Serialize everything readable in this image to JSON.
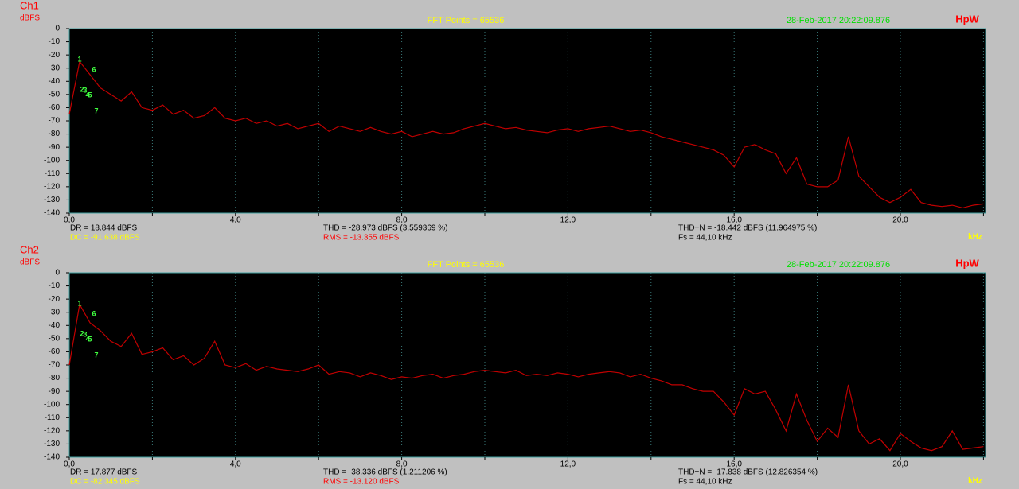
{
  "chart_data": [
    {
      "type": "line",
      "channel": "Ch1",
      "ylabel": "dBFS",
      "title": "FFT Points = 65536",
      "timestamp": "28-Feb-2017 20:22:09.876",
      "brand": "HpW",
      "xlabel": "kHz",
      "stats": [
        "DR = 18.844 dBFS",
        "DC = -91.638 dBFS",
        "THD = -28.973 dBFS (3.559369 %)",
        "RMS = -13.355 dBFS",
        "THD+N = -18.442 dBFS (11.964975 %)",
        "Fs = 44,10 kHz"
      ],
      "harmonic_markers": [
        "1",
        "6",
        "2",
        "3",
        "4",
        "5",
        "7"
      ],
      "color": "#c00000",
      "xlim": [
        0,
        22.05
      ],
      "ylim": [
        -140,
        0
      ],
      "xticks": [
        {
          "value": 0,
          "label": "0,0"
        },
        {
          "value": 2,
          "label": null
        },
        {
          "value": 4,
          "label": "4,0"
        },
        {
          "value": 6,
          "label": null
        },
        {
          "value": 8,
          "label": "8,0"
        },
        {
          "value": 10,
          "label": null
        },
        {
          "value": 12,
          "label": "12,0"
        },
        {
          "value": 14,
          "label": null
        },
        {
          "value": 16,
          "label": "16,0"
        },
        {
          "value": 18,
          "label": null
        },
        {
          "value": 20,
          "label": "20,0"
        },
        {
          "value": 22,
          "label": null
        }
      ],
      "yticks": [
        0,
        -10,
        -20,
        -30,
        -40,
        -50,
        -60,
        -70,
        -80,
        -90,
        -100,
        -110,
        -120,
        -130,
        -140
      ],
      "x": [
        0,
        0.25,
        0.5,
        0.75,
        1,
        1.25,
        1.5,
        1.75,
        2,
        2.25,
        2.5,
        2.75,
        3,
        3.25,
        3.5,
        3.75,
        4,
        4.25,
        4.5,
        4.75,
        5,
        5.25,
        5.5,
        5.75,
        6,
        6.25,
        6.5,
        6.75,
        7,
        7.25,
        7.5,
        7.75,
        8,
        8.25,
        8.5,
        8.75,
        9,
        9.25,
        9.5,
        9.75,
        10,
        10.25,
        10.5,
        10.75,
        11,
        11.25,
        11.5,
        11.75,
        12,
        12.25,
        12.5,
        12.75,
        13,
        13.25,
        13.5,
        13.75,
        14,
        14.25,
        14.5,
        14.75,
        15,
        15.25,
        15.5,
        15.75,
        16,
        16.25,
        16.5,
        16.75,
        17,
        17.25,
        17.5,
        17.75,
        18,
        18.25,
        18.5,
        18.75,
        19,
        19.25,
        19.5,
        19.75,
        20,
        20.25,
        20.5,
        20.75,
        21,
        21.25,
        21.5,
        21.75,
        22
      ],
      "values": [
        -65,
        -25,
        -35,
        -45,
        -50,
        -55,
        -48,
        -60,
        -62,
        -58,
        -65,
        -62,
        -68,
        -66,
        -60,
        -68,
        -70,
        -68,
        -72,
        -70,
        -74,
        -72,
        -76,
        -74,
        -72,
        -78,
        -74,
        -76,
        -78,
        -75,
        -78,
        -80,
        -78,
        -82,
        -80,
        -78,
        -80,
        -79,
        -76,
        -74,
        -72,
        -74,
        -76,
        -75,
        -77,
        -78,
        -79,
        -77,
        -76,
        -78,
        -76,
        -75,
        -74,
        -76,
        -78,
        -77,
        -79,
        -82,
        -84,
        -86,
        -88,
        -90,
        -92,
        -96,
        -105,
        -90,
        -88,
        -92,
        -95,
        -110,
        -98,
        -118,
        -120,
        -120,
        -115,
        -82,
        -112,
        -120,
        -128,
        -132,
        -128,
        -122,
        -132,
        -134,
        -135,
        -134,
        -136,
        -134,
        -133
      ]
    },
    {
      "type": "line",
      "channel": "Ch2",
      "ylabel": "dBFS",
      "title": "FFT Points = 65536",
      "timestamp": "28-Feb-2017 20:22:09.876",
      "brand": "HpW",
      "xlabel": "kHz",
      "stats": [
        "DR = 17.877 dBFS",
        "DC = -82.345 dBFS",
        "THD = -38.336 dBFS (1.211206 %)",
        "RMS = -13.120 dBFS",
        "THD+N = -17.838 dBFS (12.826354 %)",
        "Fs = 44,10 kHz"
      ],
      "harmonic_markers": [
        "1",
        "6",
        "2",
        "3",
        "4",
        "5",
        "7"
      ],
      "color": "#c00000",
      "xlim": [
        0,
        22.05
      ],
      "ylim": [
        -140,
        0
      ],
      "xticks": [
        {
          "value": 0,
          "label": "0,0"
        },
        {
          "value": 2,
          "label": null
        },
        {
          "value": 4,
          "label": "4,0"
        },
        {
          "value": 6,
          "label": null
        },
        {
          "value": 8,
          "label": "8,0"
        },
        {
          "value": 10,
          "label": null
        },
        {
          "value": 12,
          "label": "12,0"
        },
        {
          "value": 14,
          "label": null
        },
        {
          "value": 16,
          "label": "16,0"
        },
        {
          "value": 18,
          "label": null
        },
        {
          "value": 20,
          "label": "20,0"
        },
        {
          "value": 22,
          "label": null
        }
      ],
      "yticks": [
        0,
        -10,
        -20,
        -30,
        -40,
        -50,
        -60,
        -70,
        -80,
        -90,
        -100,
        -110,
        -120,
        -130,
        -140
      ],
      "x": [
        0,
        0.25,
        0.5,
        0.75,
        1,
        1.25,
        1.5,
        1.75,
        2,
        2.25,
        2.5,
        2.75,
        3,
        3.25,
        3.5,
        3.75,
        4,
        4.25,
        4.5,
        4.75,
        5,
        5.25,
        5.5,
        5.75,
        6,
        6.25,
        6.5,
        6.75,
        7,
        7.25,
        7.5,
        7.75,
        8,
        8.25,
        8.5,
        8.75,
        9,
        9.25,
        9.5,
        9.75,
        10,
        10.25,
        10.5,
        10.75,
        11,
        11.25,
        11.5,
        11.75,
        12,
        12.25,
        12.5,
        12.75,
        13,
        13.25,
        13.5,
        13.75,
        14,
        14.25,
        14.5,
        14.75,
        15,
        15.25,
        15.5,
        15.75,
        16,
        16.25,
        16.5,
        16.75,
        17,
        17.25,
        17.5,
        17.75,
        18,
        18.25,
        18.5,
        18.75,
        19,
        19.25,
        19.5,
        19.75,
        20,
        20.25,
        20.5,
        20.75,
        21,
        21.25,
        21.5,
        21.75,
        22
      ],
      "values": [
        -70,
        -24,
        -38,
        -44,
        -52,
        -56,
        -46,
        -62,
        -60,
        -57,
        -66,
        -63,
        -70,
        -65,
        -52,
        -70,
        -72,
        -69,
        -74,
        -71,
        -73,
        -74,
        -75,
        -73,
        -70,
        -77,
        -75,
        -76,
        -79,
        -76,
        -78,
        -81,
        -79,
        -80,
        -78,
        -77,
        -80,
        -78,
        -77,
        -75,
        -74,
        -75,
        -76,
        -74,
        -78,
        -77,
        -78,
        -76,
        -77,
        -79,
        -77,
        -76,
        -75,
        -76,
        -79,
        -77,
        -80,
        -82,
        -85,
        -85,
        -88,
        -90,
        -90,
        -98,
        -108,
        -88,
        -92,
        -90,
        -104,
        -120,
        -92,
        -112,
        -128,
        -118,
        -125,
        -85,
        -120,
        -130,
        -126,
        -135,
        -122,
        -128,
        -133,
        -135,
        -132,
        -120,
        -134,
        -133,
        -132
      ]
    }
  ]
}
